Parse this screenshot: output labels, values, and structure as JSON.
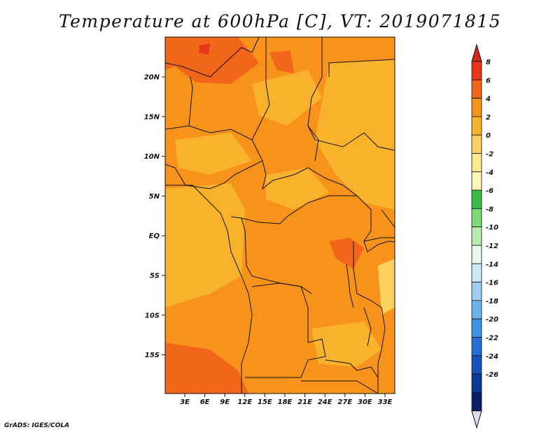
{
  "title": "Temperature at 600hPa [C], VT: 2019071815",
  "credit": "GrADS: IGES/COLA",
  "map": {
    "field": "Temperature at 600hPa",
    "units": "C",
    "valid_time": "2019071815",
    "lat_labels": [
      "20N",
      "15N",
      "10N",
      "5N",
      "EQ",
      "5S",
      "10S",
      "15S"
    ],
    "lon_labels": [
      "3E",
      "6E",
      "9E",
      "12E",
      "15E",
      "18E",
      "21E",
      "24E",
      "27E",
      "30E",
      "33E"
    ]
  },
  "colorbar": {
    "labels": [
      "8",
      "6",
      "4",
      "2",
      "0",
      "-2",
      "-4",
      "-6",
      "-8",
      "-10",
      "-12",
      "-14",
      "-16",
      "-18",
      "-20",
      "-22",
      "-24",
      "-26"
    ],
    "colors": [
      "#e8361b",
      "#f2661a",
      "#f7931a",
      "#f8b22c",
      "#fbd05e",
      "#fce98c",
      "#fdf7b8",
      "#3dbb49",
      "#7edc78",
      "#b6edae",
      "#e6f6ec",
      "#cfe8f7",
      "#9ecff2",
      "#6bb3ed",
      "#3e94e4",
      "#2270d6",
      "#1652bc",
      "#0d3797",
      "#0b1d66"
    ],
    "overflow_high": "#d4271a",
    "overflow_low": "#dcdcf4"
  }
}
